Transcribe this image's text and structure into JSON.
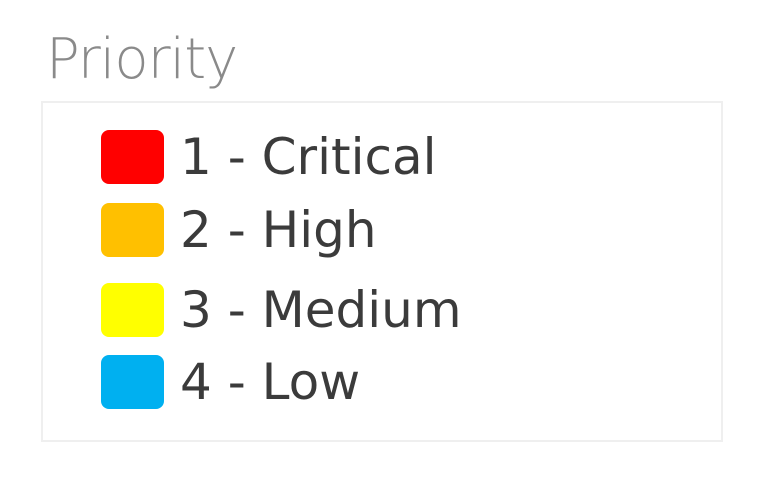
{
  "legend": {
    "title": "Priority",
    "items": [
      {
        "label": "1 - Critical",
        "color": "#ff0000"
      },
      {
        "label": "2 - High",
        "color": "#ffc000"
      },
      {
        "label": "3 - Medium",
        "color": "#ffff00"
      },
      {
        "label": "4 - Low",
        "color": "#00b0f0"
      }
    ]
  }
}
